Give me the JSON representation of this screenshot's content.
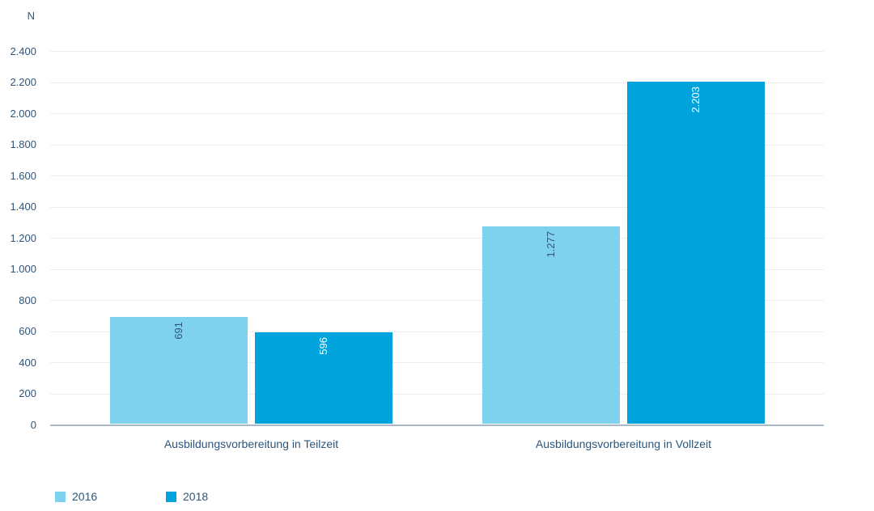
{
  "chart_data": {
    "type": "bar",
    "title": "",
    "y_axis_label": "N",
    "categories": [
      "Ausbildungsvorbereitung in Teilzeit",
      "Ausbildungsvorbereitung in Vollzeit"
    ],
    "series": [
      {
        "name": "2016",
        "color": "#7fd2ee",
        "values": [
          691,
          1277
        ],
        "value_labels": [
          "691",
          "1.277"
        ],
        "value_label_color": "#2d567c"
      },
      {
        "name": "2018",
        "color": "#00a3dc",
        "values": [
          596,
          2203
        ],
        "value_labels": [
          "596",
          "2.203"
        ],
        "value_label_color": "#ffffff"
      }
    ],
    "ylim": [
      0,
      2400
    ],
    "ytick_step": 200,
    "yticks": [
      {
        "value": 2400,
        "label": "2.400"
      },
      {
        "value": 2200,
        "label": "2.200"
      },
      {
        "value": 2000,
        "label": "2.000"
      },
      {
        "value": 1800,
        "label": "1.800"
      },
      {
        "value": 1600,
        "label": "1.600"
      },
      {
        "value": 1400,
        "label": "1.400"
      },
      {
        "value": 1200,
        "label": "1.200"
      },
      {
        "value": 1000,
        "label": "1.000"
      },
      {
        "value": 800,
        "label": "800"
      },
      {
        "value": 600,
        "label": "600"
      },
      {
        "value": 400,
        "label": "400"
      },
      {
        "value": 200,
        "label": "200"
      },
      {
        "value": 0,
        "label": "0"
      }
    ],
    "grid": true,
    "legend_position": "bottom-left",
    "colors": {
      "text": "#2d567c",
      "gridline": "#ededed",
      "axis_line": "#a8bac9",
      "background": "#ffffff"
    }
  },
  "legend": {
    "items": [
      {
        "label": "2016",
        "color": "#7fd2ee"
      },
      {
        "label": "2018",
        "color": "#00a3dc"
      }
    ]
  }
}
